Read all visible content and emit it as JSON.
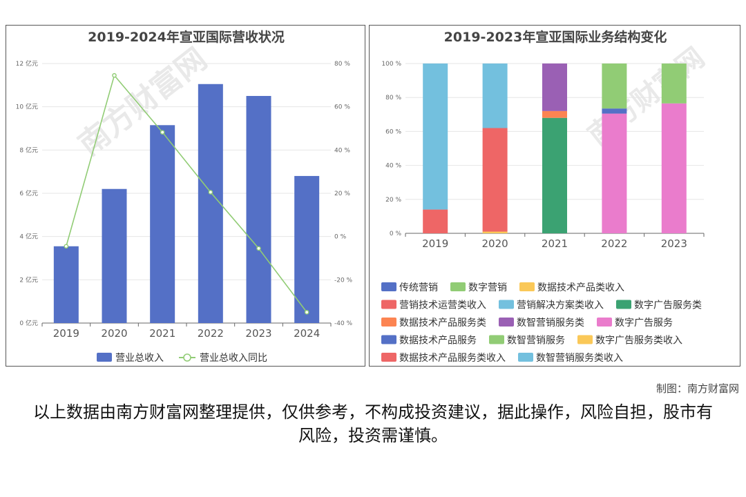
{
  "credit": "制图：南方财富网",
  "disclaimer": "以上数据由南方财富网整理提供，仅供参考，不构成投资建议，据此操作，风险自担，股市有风险，投资需谨慎。",
  "watermark_text": "南方财富网",
  "chart_data": [
    {
      "type": "bar",
      "title": "2019-2024年宣亚国际营收状况",
      "categories": [
        "2019",
        "2020",
        "2021",
        "2022",
        "2023",
        "2024"
      ],
      "series": [
        {
          "name": "营业总收入",
          "kind": "bar",
          "axis": "left",
          "color": "#5470c6",
          "values": [
            3.55,
            6.2,
            9.15,
            11.05,
            10.5,
            6.8
          ]
        },
        {
          "name": "营业总收入同比",
          "kind": "line",
          "axis": "right",
          "color": "#91cc75",
          "values": [
            -4.5,
            74.5,
            48.2,
            20.5,
            -5.5,
            -35.0
          ]
        }
      ],
      "y_left": {
        "min": 0,
        "max": 12,
        "step": 2,
        "unit": "亿元"
      },
      "y_right": {
        "min": -40,
        "max": 80,
        "step": 20,
        "unit": "%"
      },
      "grid": true,
      "legend": "bottom"
    },
    {
      "type": "bar",
      "stacked": true,
      "title": "2019-2023年宣亚国际业务结构变化",
      "categories": [
        "2019",
        "2020",
        "2021",
        "2022",
        "2023"
      ],
      "y": {
        "min": 0,
        "max": 100,
        "step": 20,
        "unit": "%"
      },
      "series": [
        {
          "name": "传统营销",
          "color": "#5470c6",
          "values": [
            0,
            0,
            0,
            0,
            0
          ]
        },
        {
          "name": "数字营销",
          "color": "#91cc75",
          "values": [
            0,
            0,
            0,
            0,
            0
          ]
        },
        {
          "name": "数据技术产品类收入",
          "color": "#fac858",
          "values": [
            0,
            1,
            0,
            0,
            0
          ]
        },
        {
          "name": "营销技术运营类收入",
          "color": "#ee6666",
          "values": [
            14,
            61,
            0,
            0,
            0
          ]
        },
        {
          "name": "营销解决方案类收入",
          "color": "#73c0de",
          "values": [
            86,
            38,
            0,
            0,
            0
          ]
        },
        {
          "name": "数字广告服务类",
          "color": "#3ba272",
          "values": [
            0,
            0,
            68,
            0,
            0
          ]
        },
        {
          "name": "数据技术产品服务类",
          "color": "#fc8452",
          "values": [
            0,
            0,
            4,
            0,
            0
          ]
        },
        {
          "name": "数智营销服务类",
          "color": "#9a60b4",
          "values": [
            0,
            0,
            28,
            0,
            0
          ]
        },
        {
          "name": "数字广告服务",
          "color": "#ea7ccc",
          "values": [
            0,
            0,
            0,
            70.5,
            76.5
          ]
        },
        {
          "name": "数据技术产品服务",
          "color": "#5470c6",
          "values": [
            0,
            0,
            0,
            3,
            0
          ]
        },
        {
          "name": "数智营销服务",
          "color": "#91cc75",
          "values": [
            0,
            0,
            0,
            26.5,
            23.5
          ]
        },
        {
          "name": "数字广告服务类收入",
          "color": "#fac858",
          "values": [
            0,
            0,
            0,
            0,
            0
          ]
        },
        {
          "name": "数据技术产品服务类收入",
          "color": "#ee6666",
          "values": [
            0,
            0,
            0,
            0,
            0
          ]
        },
        {
          "name": "数智营销服务类收入",
          "color": "#73c0de",
          "values": [
            0,
            0,
            0,
            0,
            0
          ]
        }
      ],
      "grid": true,
      "legend": "bottom"
    }
  ]
}
